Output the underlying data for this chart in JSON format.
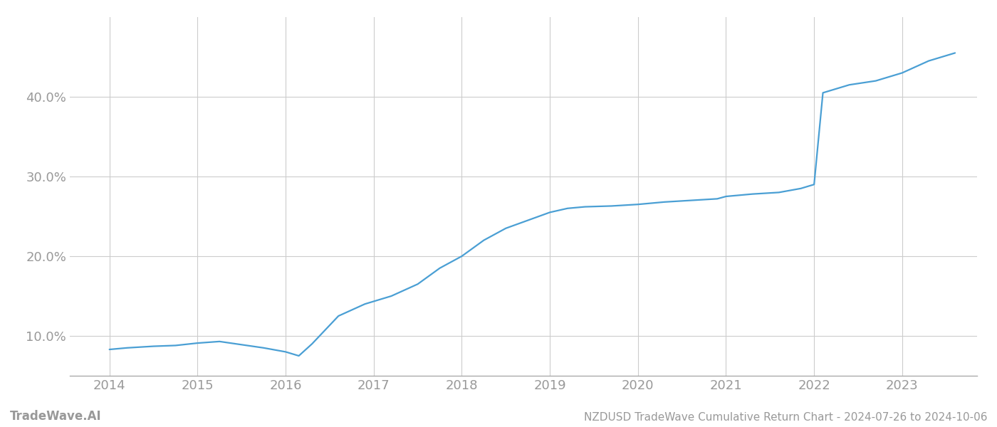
{
  "title": "NZDUSD TradeWave Cumulative Return Chart - 2024-07-26 to 2024-10-06",
  "watermark": "TradeWave.AI",
  "line_color": "#4a9fd4",
  "background_color": "#ffffff",
  "grid_color": "#cccccc",
  "x_years": [
    2014,
    2015,
    2016,
    2017,
    2018,
    2019,
    2020,
    2021,
    2022,
    2023
  ],
  "data_x": [
    2014.0,
    2014.2,
    2014.5,
    2014.75,
    2015.0,
    2015.25,
    2015.5,
    2015.75,
    2016.0,
    2016.15,
    2016.3,
    2016.6,
    2016.9,
    2017.2,
    2017.5,
    2017.75,
    2018.0,
    2018.25,
    2018.5,
    2018.75,
    2019.0,
    2019.2,
    2019.4,
    2019.7,
    2020.0,
    2020.3,
    2020.6,
    2020.9,
    2021.0,
    2021.3,
    2021.6,
    2021.85,
    2022.0,
    2022.1,
    2022.4,
    2022.7,
    2023.0,
    2023.3,
    2023.6
  ],
  "data_y": [
    8.3,
    8.5,
    8.7,
    8.8,
    9.1,
    9.3,
    8.9,
    8.5,
    8.0,
    7.5,
    9.0,
    12.5,
    14.0,
    15.0,
    16.5,
    18.5,
    20.0,
    22.0,
    23.5,
    24.5,
    25.5,
    26.0,
    26.2,
    26.3,
    26.5,
    26.8,
    27.0,
    27.2,
    27.5,
    27.8,
    28.0,
    28.5,
    29.0,
    40.5,
    41.5,
    42.0,
    43.0,
    44.5,
    45.5
  ],
  "ylim": [
    5.0,
    50.0
  ],
  "xlim": [
    2013.55,
    2023.85
  ],
  "yticks": [
    10.0,
    20.0,
    30.0,
    40.0
  ],
  "title_fontsize": 11,
  "watermark_fontsize": 12,
  "tick_fontsize": 13,
  "tick_color": "#999999",
  "axis_color": "#aaaaaa"
}
